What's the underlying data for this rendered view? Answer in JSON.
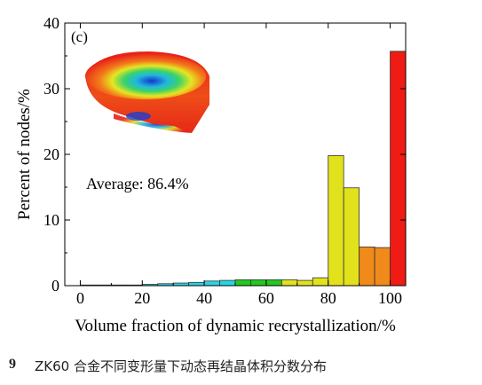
{
  "panel_label": "(c)",
  "annotation": "Average: 86.4%",
  "caption": {
    "number": "9",
    "text": "ZK60 合金不同变形量下动态再结晶体积分数分布"
  },
  "colors": {
    "axis": "#000000",
    "bar_outline": "#333333",
    "blue": "#2a6fe0",
    "cyan": "#27d6e6",
    "green": "#26c81f",
    "yellow": "#e2e21c",
    "orange": "#f08a1a",
    "red": "#ef1b14"
  },
  "chart_data": {
    "type": "bar",
    "xlabel": "Volume fraction of dynamic recrystallization/%",
    "ylabel": "Percent of nodes/%",
    "xlim": [
      -5,
      105
    ],
    "ylim": [
      0,
      40
    ],
    "xticks": [
      0,
      20,
      40,
      60,
      80,
      100
    ],
    "yticks": [
      0,
      10,
      20,
      30,
      40
    ],
    "bin_width": 5,
    "bins": [
      {
        "x": 2.5,
        "value": 0.1,
        "color": "blue"
      },
      {
        "x": 7.5,
        "value": 0.1,
        "color": "blue"
      },
      {
        "x": 12.5,
        "value": 0.1,
        "color": "blue"
      },
      {
        "x": 17.5,
        "value": 0.1,
        "color": "blue"
      },
      {
        "x": 22.5,
        "value": 0.2,
        "color": "cyan"
      },
      {
        "x": 27.5,
        "value": 0.3,
        "color": "cyan"
      },
      {
        "x": 32.5,
        "value": 0.4,
        "color": "cyan"
      },
      {
        "x": 37.5,
        "value": 0.5,
        "color": "cyan"
      },
      {
        "x": 42.5,
        "value": 0.7,
        "color": "cyan"
      },
      {
        "x": 47.5,
        "value": 0.8,
        "color": "cyan"
      },
      {
        "x": 52.5,
        "value": 0.9,
        "color": "green"
      },
      {
        "x": 57.5,
        "value": 0.9,
        "color": "green"
      },
      {
        "x": 62.5,
        "value": 0.9,
        "color": "green"
      },
      {
        "x": 67.5,
        "value": 0.9,
        "color": "yellow"
      },
      {
        "x": 72.5,
        "value": 0.8,
        "color": "yellow"
      },
      {
        "x": 77.5,
        "value": 1.2,
        "color": "yellow"
      },
      {
        "x": 82.5,
        "value": 19.8,
        "color": "yellow"
      },
      {
        "x": 87.5,
        "value": 14.9,
        "color": "yellow"
      },
      {
        "x": 92.5,
        "value": 5.9,
        "color": "orange"
      },
      {
        "x": 97.5,
        "value": 5.8,
        "color": "orange"
      },
      {
        "x": 102.5,
        "value": 35.7,
        "color": "red"
      }
    ]
  }
}
